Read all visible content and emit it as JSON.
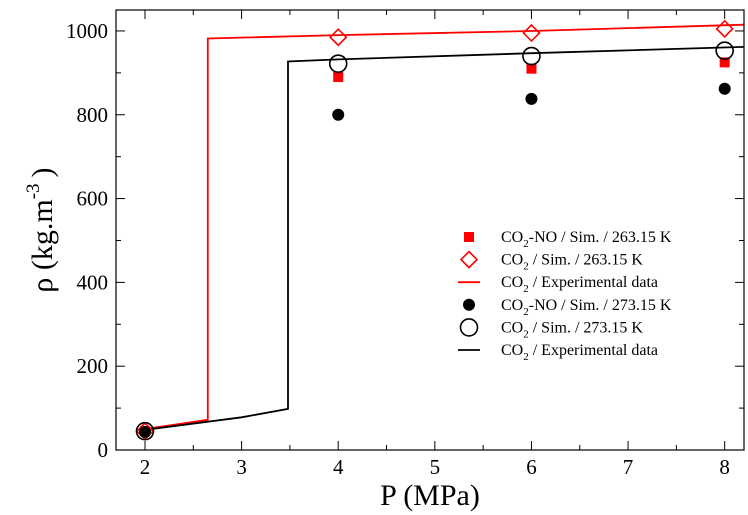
{
  "chart_data": {
    "type": "scatter",
    "xlabel": "P (MPa)",
    "ylabel": {
      "main": "ρ (kg.m",
      "sup": "-3",
      "close": ")"
    },
    "xlim": [
      1.7,
      8.2
    ],
    "ylim": [
      0,
      1050
    ],
    "xticks": [
      2,
      3,
      4,
      5,
      6,
      7,
      8
    ],
    "yticks": [
      0,
      200,
      400,
      600,
      800,
      1000
    ],
    "legend_position": "right",
    "series": [
      {
        "key": "co2no_263",
        "legend": {
          "pre": "CO",
          "sub": "2",
          "post": "-NO / Sim. / 263.15 K"
        },
        "marker": "square-filled",
        "color": "#ff0000",
        "x": [
          2,
          4,
          6,
          8
        ],
        "y": [
          45,
          890,
          910,
          925
        ]
      },
      {
        "key": "co2_263",
        "legend": {
          "pre": "CO",
          "sub": "2",
          "post": " / Sim. / 263.15 K"
        },
        "marker": "diamond-open",
        "color": "#ff0000",
        "x": [
          2,
          4,
          6,
          8
        ],
        "y": [
          45,
          985,
          995,
          1005
        ]
      },
      {
        "key": "exp_263",
        "legend": {
          "pre": "CO",
          "sub": "2",
          "post": " / Experimental data"
        },
        "marker": "line",
        "color": "#ff0000",
        "x": [
          2,
          2.65,
          2.65,
          4,
          6,
          8.2
        ],
        "y": [
          50,
          72,
          982,
          990,
          1000,
          1015
        ]
      },
      {
        "key": "co2no_273",
        "legend": {
          "pre": "CO",
          "sub": "2",
          "post": "-NO / Sim. / 273.15 K"
        },
        "marker": "circle-filled",
        "color": "#000000",
        "x": [
          2,
          4,
          6,
          8
        ],
        "y": [
          43,
          800,
          838,
          862
        ]
      },
      {
        "key": "co2_273",
        "legend": {
          "pre": "CO",
          "sub": "2",
          "post": " / Sim. / 273.15 K"
        },
        "marker": "circle-open",
        "color": "#000000",
        "x": [
          2,
          4,
          6,
          8
        ],
        "y": [
          45,
          922,
          940,
          953
        ]
      },
      {
        "key": "exp_273",
        "legend": {
          "pre": "CO",
          "sub": "2",
          "post": " / Experimental data"
        },
        "marker": "line",
        "color": "#000000",
        "x": [
          2,
          3,
          3.48,
          3.48,
          4,
          6,
          8.2
        ],
        "y": [
          48,
          78,
          98,
          927,
          932,
          947,
          962
        ]
      }
    ]
  }
}
